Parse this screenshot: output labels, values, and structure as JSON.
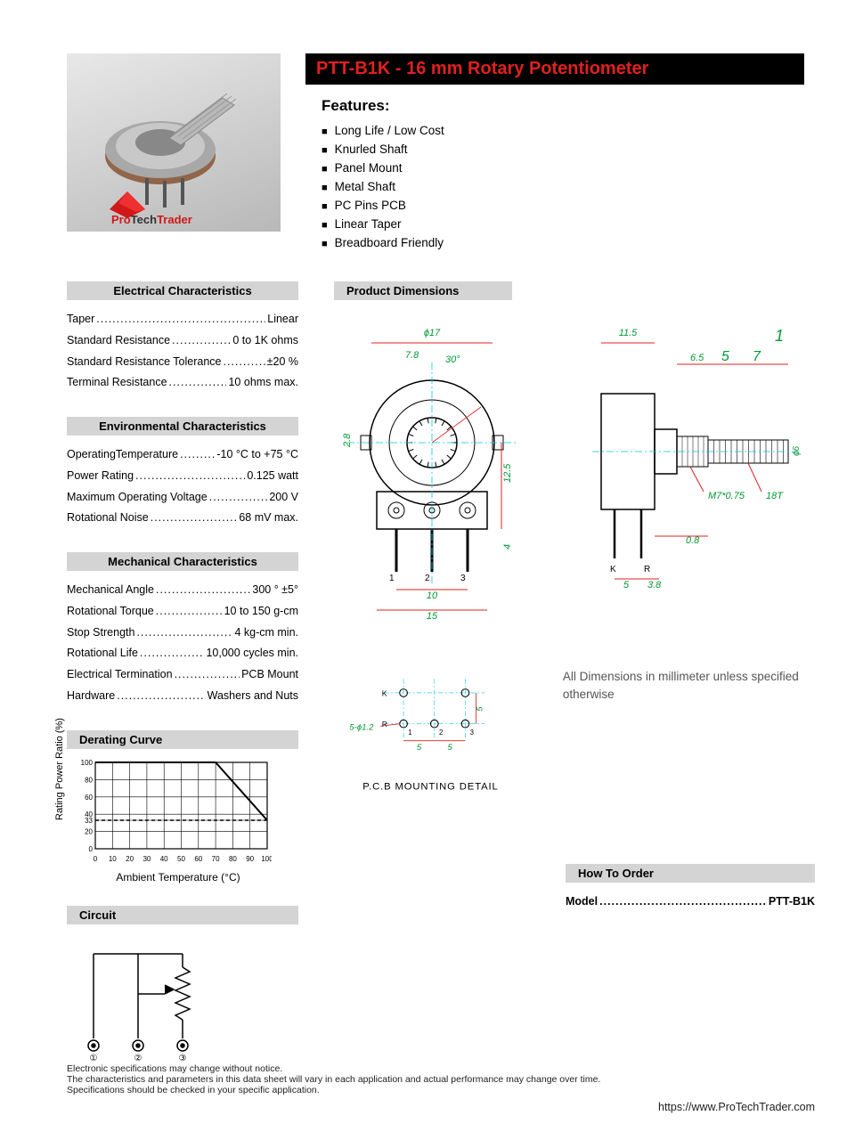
{
  "title": "PTT-B1K - 16 mm Rotary Potentiometer",
  "brand_text": "ProTechTrader",
  "features_heading": "Features:",
  "features": [
    "Long Life / Low Cost",
    "Knurled Shaft",
    "Panel Mount",
    "Metal Shaft",
    "PC Pins PCB",
    "Linear Taper",
    "Breadboard Friendly"
  ],
  "sections": {
    "electrical": {
      "title": "Electrical Characteristics",
      "rows": [
        {
          "label": "Taper",
          "value": "Linear"
        },
        {
          "label": "Standard Resistance",
          "value": "0 to 1K ohms"
        },
        {
          "label": "Standard Resistance Tolerance",
          "value": "±20 %"
        },
        {
          "label": "Terminal Resistance",
          "value": "10 ohms max."
        }
      ]
    },
    "environmental": {
      "title": "Environmental Characteristics",
      "rows": [
        {
          "label": "OperatingTemperature",
          "value": "-10 °C to +75 °C"
        },
        {
          "label": "Power Rating",
          "value": "0.125 watt"
        },
        {
          "label": "Maximum Operating Voltage",
          "value": "200 V"
        },
        {
          "label": "Rotational Noise",
          "value": "68 mV max."
        }
      ]
    },
    "mechanical": {
      "title": "Mechanical Characteristics",
      "rows": [
        {
          "label": "Mechanical Angle",
          "value": "300 ° ±5°"
        },
        {
          "label": "Rotational Torque",
          "value": "10 to 150 g-cm"
        },
        {
          "label": "Stop Strength",
          "value": "4 kg-cm min."
        },
        {
          "label": "Rotational Life",
          "value": "10,000 cycles min."
        },
        {
          "label": "Electrical Termination",
          "value": "PCB Mount"
        },
        {
          "label": "Hardware",
          "value": "Washers and Nuts"
        }
      ]
    },
    "derating": {
      "title": "Derating Curve"
    },
    "circuit": {
      "title": "Circuit"
    },
    "dimensions": {
      "title": "Product Dimensions"
    },
    "order": {
      "title": "How To Order",
      "label": "Model",
      "value": "PTT-B1K"
    }
  },
  "derating_chart": {
    "ylabel": "Rating Power Ratio (%)",
    "xlabel": "Ambient Temperature (°C)",
    "yticks": [
      0,
      20,
      33,
      40,
      60,
      80,
      100
    ],
    "xticks": [
      0,
      10,
      20,
      30,
      40,
      50,
      60,
      70,
      80,
      90,
      100
    ],
    "line_points": [
      [
        0,
        100
      ],
      [
        70,
        100
      ],
      [
        100,
        33
      ]
    ],
    "dash_line": [
      [
        0,
        33
      ],
      [
        100,
        33
      ]
    ],
    "colors": {
      "grid": "#000000",
      "line": "#000000",
      "bg": "#ffffff"
    }
  },
  "dimensions_labels": {
    "front": {
      "phi17": "ϕ17",
      "w78": "7.8",
      "ang30": "30°",
      "h28": "2.8",
      "h125": "12.5",
      "h4": "4",
      "w10": "10",
      "w15": "15",
      "p1": "1",
      "p2": "2",
      "p3": "3"
    },
    "side": {
      "w115": "11.5",
      "d1": "1",
      "d65": "6.5",
      "d5": "5",
      "d7": "7",
      "m7": "M7*0.75",
      "t18": "18T",
      "phi6": "ϕ6",
      "bot08": "0.8",
      "bot5": "5",
      "bot38": "3.8",
      "K": "K",
      "R": "R"
    },
    "pcb": {
      "title": "P.C.B MOUNTING DETAIL",
      "hole": "5-ϕ1.2",
      "sp5": "5",
      "K": "K",
      "R": "R",
      "p1": "1",
      "p2": "2",
      "p3": "3"
    },
    "note": "All Dimensions in millimeter unless specified otherwise"
  },
  "footer_lines": [
    "Electronic specifications may change without notice.",
    "The characteristics and parameters in this data sheet will vary in each application and actual performance may change over time.",
    "Specifications should be checked in your specific application."
  ],
  "url": "https://www.ProTechTrader.com",
  "colors": {
    "title_red": "#e02020",
    "header_gray": "#d4d4d4",
    "dim_red": "#e02020",
    "dim_green": "#009933",
    "dim_cyan": "#00c8e8"
  }
}
